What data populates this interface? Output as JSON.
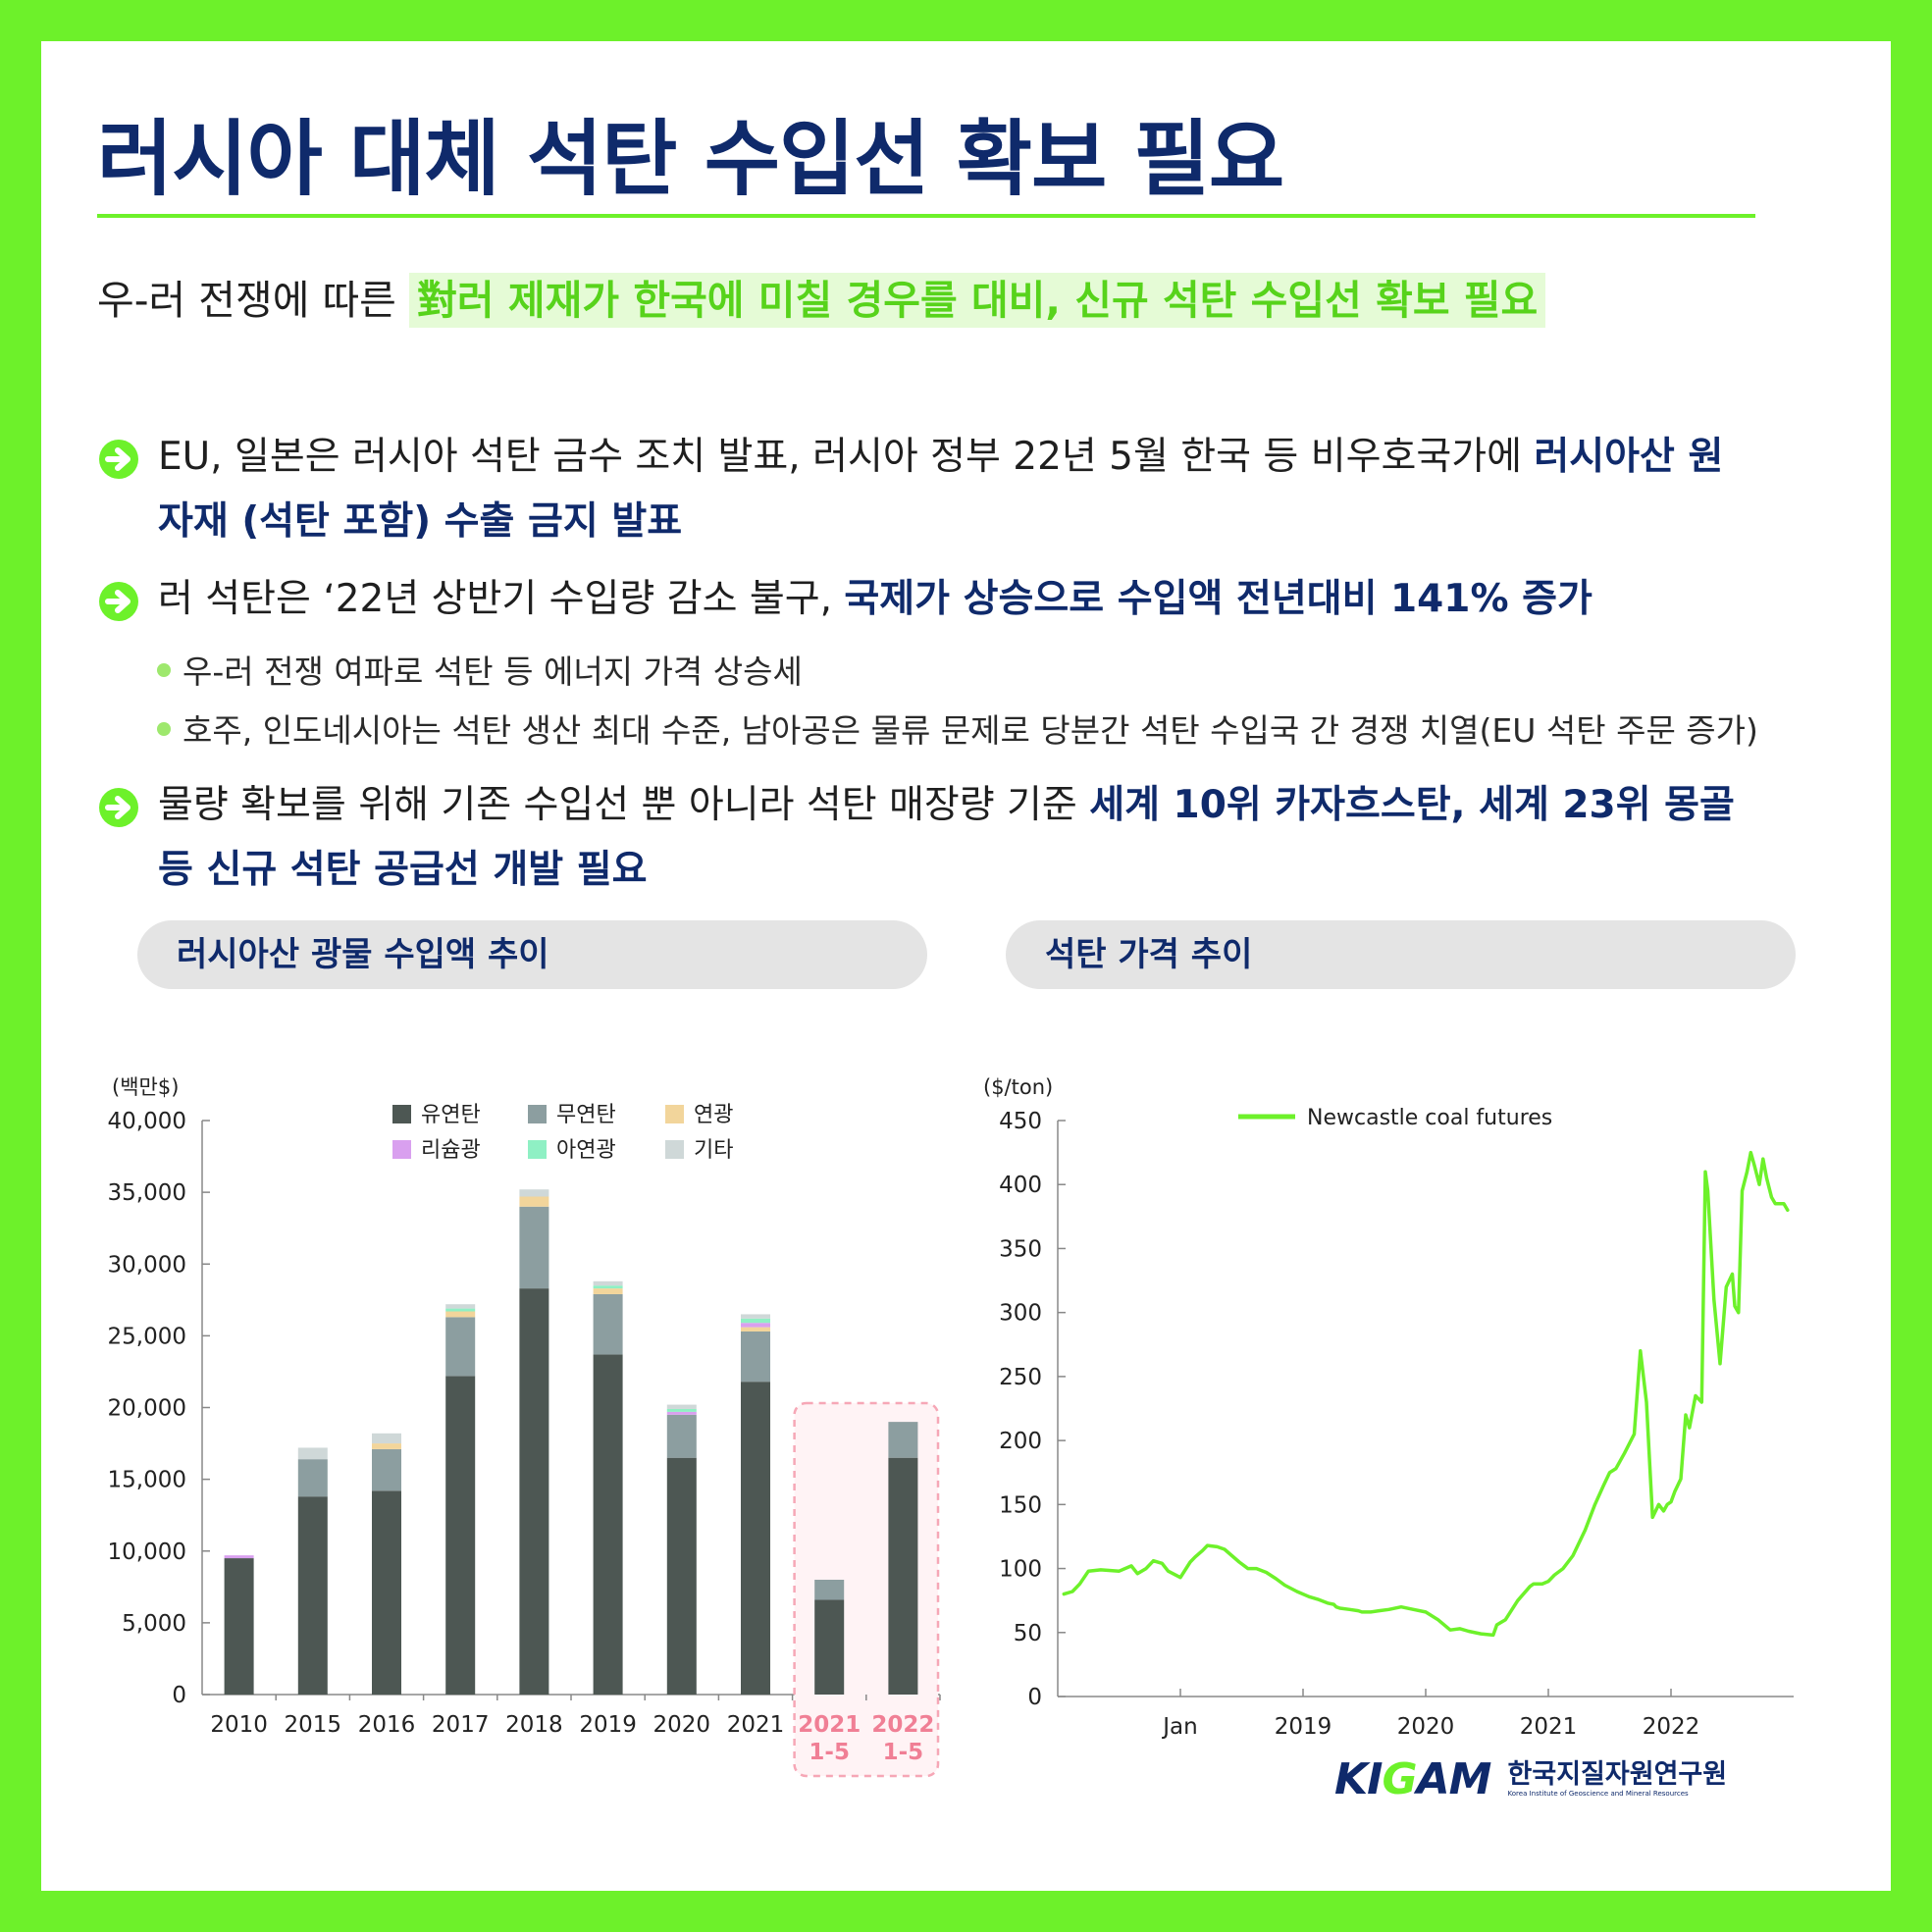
{
  "title": "러시아 대체 석탄 수입선 확보 필요",
  "lead": {
    "prefix": "우-러 전쟁에 따른 ",
    "highlight": "對러 제재가 한국에 미칠 경우를 대비, 신규 석탄 수입선 확보 필요"
  },
  "bullets": [
    {
      "normal": "EU, 일본은 러시아 석탄 금수 조치 발표, 러시아 정부 22년 5월 한국 등 비우호국가에 ",
      "emphasis": "러시아산 원자재 (석탄 포함) 수출 금지 발표"
    },
    {
      "normal": "러 석탄은 ‘22년 상반기 수입량 감소 불구, ",
      "emphasis": "국제가 상승으로 수입액 전년대비 141% 증가"
    },
    {
      "normal": "물량 확보를 위해 기존 수입선 뿐 아니라 석탄 매장량 기준 ",
      "emphasis": "세계 10위 카자흐스탄, 세계 23위 몽골 등 신규 석탄 공급선 개발 필요"
    }
  ],
  "sub_bullets": [
    "우-러 전쟁 여파로 석탄 등 에너지 가격 상승세",
    "호주, 인도네시아는 석탄 생산 최대 수준, 남아공은 물류 문제로 당분간 석탄 수입국 간 경쟁 치열(EU 석탄 주문 증가)"
  ],
  "chart1_title": "러시아산 광물 수입액 추이",
  "chart2_title": "석탄 가격 추이",
  "logo": {
    "main": "KIGAM",
    "korean": "한국지질자원연구원",
    "english": "Korea Institute of Geoscience and Mineral Resources"
  },
  "colors": {
    "bituminous": "#4d5753",
    "anthracite": "#8c9ea0",
    "lead_ore": "#f2d59b",
    "lithium": "#d9a0ef",
    "zinc": "#8ff0c4",
    "other": "#cfd8d8",
    "line": "#6df12a",
    "highlight_box": "#f6a7b6",
    "navy": "#0f2a6b"
  },
  "chart_data": [
    {
      "type": "bar",
      "stacked": true,
      "ylabel": "(백만$)",
      "ylim": [
        0,
        40000
      ],
      "yticks": [
        "0",
        "5,000",
        "10,000",
        "15,000",
        "20,000",
        "25,000",
        "30,000",
        "35,000",
        "40,000"
      ],
      "categories": [
        "2010",
        "2015",
        "2016",
        "2017",
        "2018",
        "2019",
        "2020",
        "2021",
        "2021\n1-5",
        "2022\n1-5"
      ],
      "highlight_categories": [
        "2021\n1-5",
        "2022\n1-5"
      ],
      "legend_position": "top",
      "series": [
        {
          "name": "유연탄",
          "values": [
            9500,
            13800,
            14200,
            22200,
            28300,
            23700,
            16500,
            21800,
            6600,
            16500
          ]
        },
        {
          "name": "무연탄",
          "values": [
            0,
            2600,
            2900,
            4100,
            5700,
            4200,
            3000,
            3500,
            1400,
            2500
          ]
        },
        {
          "name": "연광",
          "values": [
            0,
            0,
            400,
            400,
            700,
            400,
            0,
            300,
            0,
            0
          ]
        },
        {
          "name": "리슘광",
          "values": [
            200,
            0,
            0,
            0,
            0,
            0,
            200,
            300,
            0,
            0
          ]
        },
        {
          "name": "아연광",
          "values": [
            0,
            0,
            0,
            200,
            0,
            200,
            200,
            300,
            0,
            0
          ]
        },
        {
          "name": "기타",
          "values": [
            0,
            800,
            700,
            300,
            500,
            300,
            300,
            300,
            0,
            0
          ]
        }
      ]
    },
    {
      "type": "line",
      "ylabel": "($/ton)",
      "ylim": [
        0,
        450
      ],
      "yticks": [
        "0",
        "50",
        "100",
        "150",
        "200",
        "250",
        "300",
        "350",
        "400",
        "450"
      ],
      "xlim": [
        0,
        6
      ],
      "xticks": [
        {
          "value": 1,
          "label": "Jan"
        },
        {
          "value": 2,
          "label": "2019"
        },
        {
          "value": 3,
          "label": "2020"
        },
        {
          "value": 4,
          "label": "2021"
        },
        {
          "value": 5,
          "label": "2022"
        }
      ],
      "legend_position": "top",
      "series": [
        {
          "name": "Newcastle coal futures",
          "x": [
            0.05,
            0.12,
            0.18,
            0.25,
            0.35,
            0.5,
            0.6,
            0.65,
            0.72,
            0.78,
            0.85,
            0.9,
            1.0,
            1.08,
            1.12,
            1.18,
            1.22,
            1.3,
            1.36,
            1.42,
            1.48,
            1.55,
            1.62,
            1.7,
            1.78,
            1.85,
            1.95,
            2.05,
            2.12,
            2.2,
            2.25,
            2.27,
            2.3,
            2.38,
            2.45,
            2.48,
            2.55,
            2.62,
            2.7,
            2.8,
            2.9,
            3.0,
            3.1,
            3.2,
            3.28,
            3.35,
            3.45,
            3.55,
            3.58,
            3.65,
            3.75,
            3.85,
            3.88,
            3.95,
            4.0,
            4.05,
            4.12,
            4.2,
            4.3,
            4.38,
            4.45,
            4.5,
            4.55,
            4.62,
            4.7,
            4.75,
            4.8,
            4.85,
            4.9,
            4.94,
            4.97,
            5.0,
            5.03,
            5.08,
            5.12,
            5.15,
            5.2,
            5.25,
            5.28,
            5.3,
            5.35,
            5.4,
            5.45,
            5.5,
            5.52,
            5.55,
            5.58,
            5.62,
            5.65,
            5.68,
            5.72,
            5.75,
            5.78,
            5.82,
            5.85,
            5.88,
            5.92,
            5.95
          ],
          "y": [
            80,
            82,
            88,
            98,
            99,
            98,
            102,
            96,
            100,
            106,
            104,
            98,
            93,
            105,
            109,
            114,
            118,
            117,
            115,
            110,
            105,
            100,
            100,
            97,
            92,
            87,
            82,
            78,
            76,
            73,
            72,
            70,
            69,
            68,
            67,
            66,
            66,
            67,
            68,
            70,
            68,
            66,
            60,
            52,
            53,
            51,
            49,
            48,
            56,
            60,
            75,
            86,
            88,
            88,
            90,
            95,
            100,
            110,
            130,
            150,
            165,
            175,
            178,
            190,
            205,
            270,
            230,
            140,
            150,
            145,
            150,
            152,
            160,
            170,
            220,
            210,
            235,
            230,
            410,
            395,
            310,
            260,
            320,
            330,
            305,
            300,
            395,
            410,
            425,
            415,
            400,
            420,
            405,
            390,
            385,
            385,
            385,
            380
          ]
        }
      ]
    }
  ]
}
